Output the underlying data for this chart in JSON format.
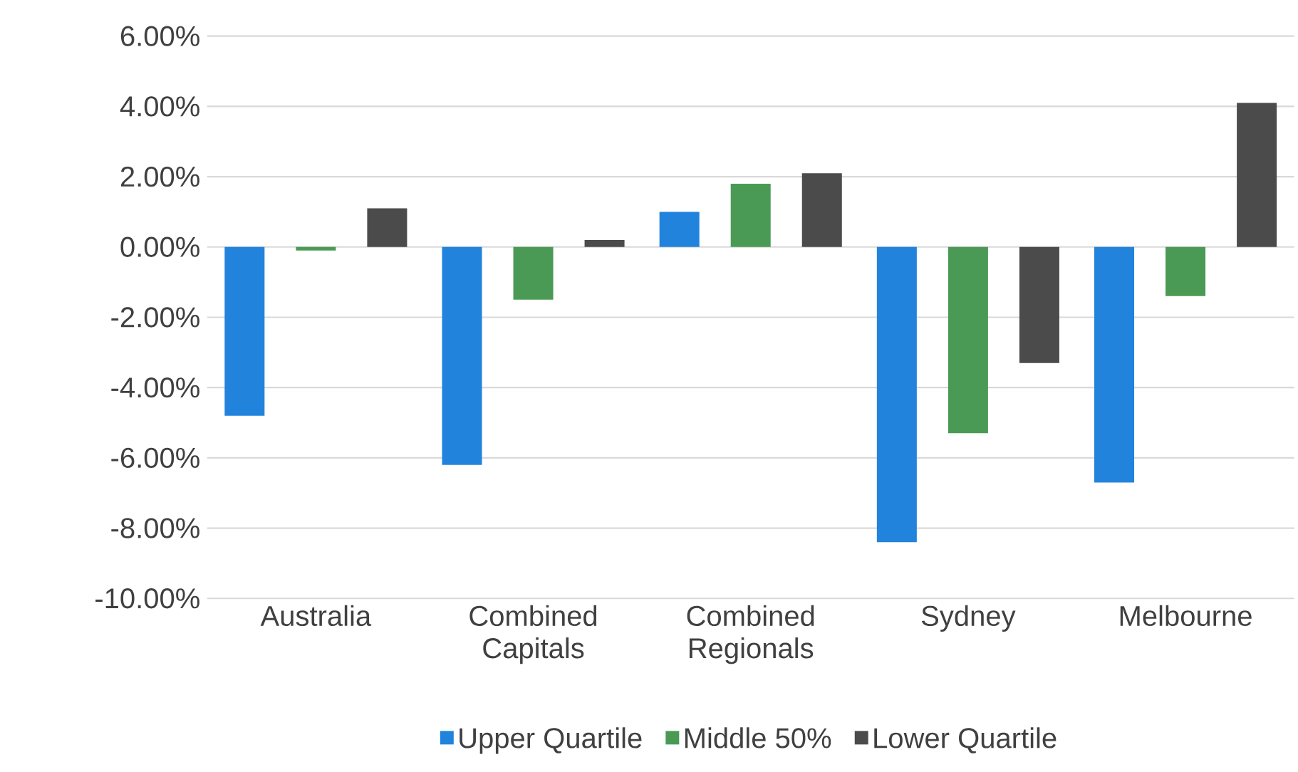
{
  "chart_data": {
    "type": "bar",
    "categories": [
      "Australia",
      "Combined Capitals",
      "Combined Regionals",
      "Sydney",
      "Melbourne"
    ],
    "series": [
      {
        "name": "Upper Quartile",
        "color": "#2183dc",
        "values": [
          -4.8,
          -6.2,
          1.0,
          -8.4,
          -6.7
        ]
      },
      {
        "name": "Middle 50%",
        "color": "#4a9a55",
        "values": [
          -0.1,
          -1.5,
          1.8,
          -5.3,
          -1.4
        ]
      },
      {
        "name": "Lower Quartile",
        "color": "#4b4b4b",
        "values": [
          1.1,
          0.2,
          2.1,
          -3.3,
          4.1
        ]
      }
    ],
    "ylim": [
      -10,
      6
    ],
    "yticks": [
      {
        "value": -10,
        "label": "-10.00%"
      },
      {
        "value": -8,
        "label": "-8.00%"
      },
      {
        "value": -6,
        "label": "-6.00%"
      },
      {
        "value": -4,
        "label": "-4.00%"
      },
      {
        "value": -2,
        "label": "-2.00%"
      },
      {
        "value": 0,
        "label": "0.00%"
      },
      {
        "value": 2,
        "label": "2.00%"
      },
      {
        "value": 4,
        "label": "4.00%"
      },
      {
        "value": 6,
        "label": "6.00%"
      }
    ],
    "grid": "y",
    "legend": "bottom"
  }
}
